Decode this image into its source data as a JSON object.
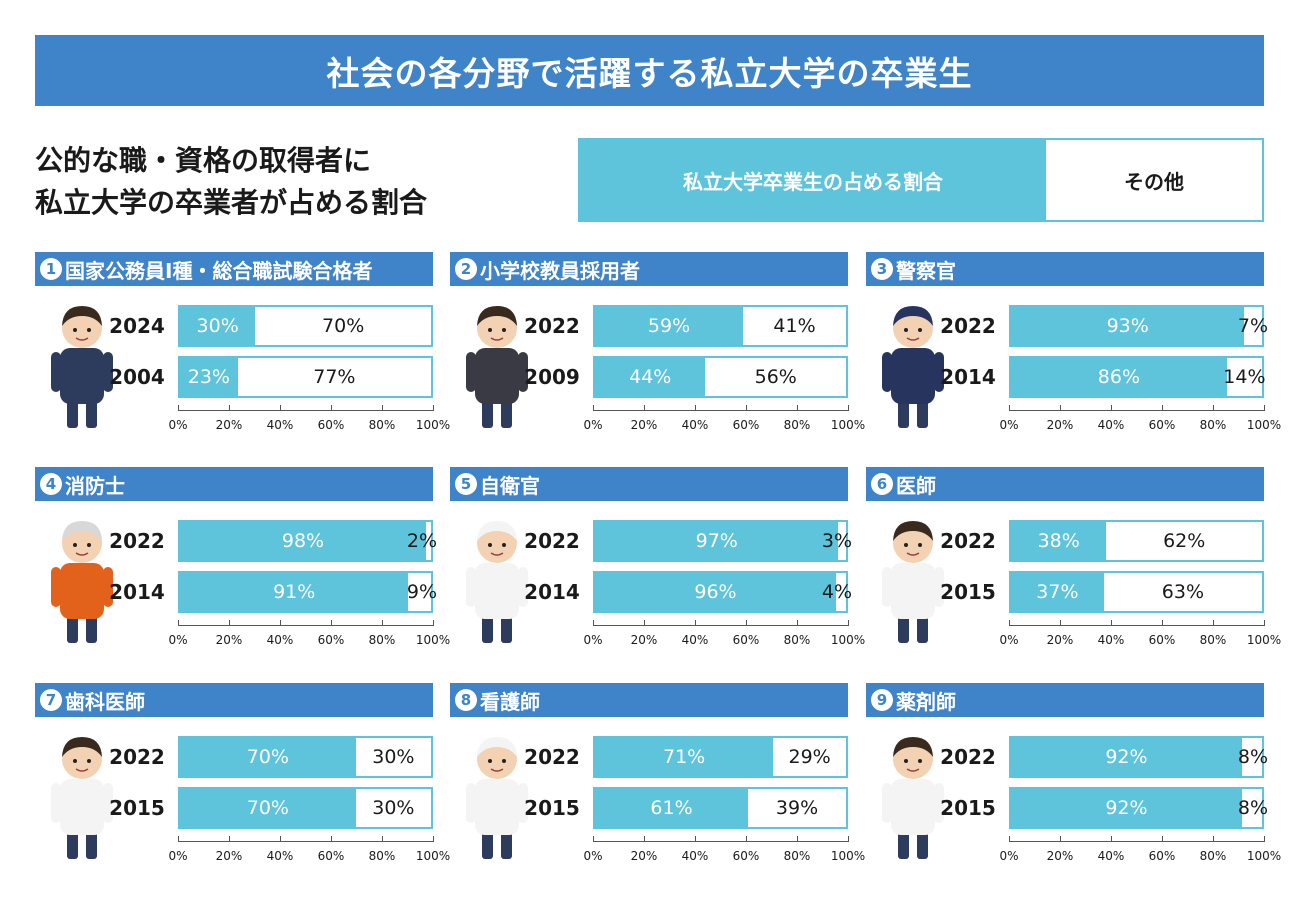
{
  "title": "社会の各分野で活躍する私立大学の卒業生",
  "subtitle_line1": "公的な職・資格の取得者に",
  "subtitle_line2": "私立大学の卒業者が占める割合",
  "legend": {
    "private": "私立大学卒業生の占める割合",
    "other": "その他"
  },
  "colors": {
    "header": "#3f84c8",
    "private": "#5ec4dc",
    "other": "#ffffff"
  },
  "axis_ticks": [
    "0%",
    "20%",
    "40%",
    "60%",
    "80%",
    "100%"
  ],
  "chart_data": [
    {
      "type": "bar",
      "number": "1",
      "title": "国家公務員I種・総合職試験合格者",
      "figure_icon": "civil-servant-icon",
      "categories": [
        "2024",
        "2004"
      ],
      "xlim": [
        0,
        100
      ],
      "series": [
        {
          "name": "私立大学卒業生の占める割合",
          "values": [
            30,
            23
          ]
        },
        {
          "name": "その他",
          "values": [
            70,
            77
          ]
        }
      ]
    },
    {
      "type": "bar",
      "number": "2",
      "title": "小学校教員採用者",
      "figure_icon": "teacher-icon",
      "categories": [
        "2022",
        "2009"
      ],
      "xlim": [
        0,
        100
      ],
      "series": [
        {
          "name": "私立大学卒業生の占める割合",
          "values": [
            59,
            44
          ]
        },
        {
          "name": "その他",
          "values": [
            41,
            56
          ]
        }
      ]
    },
    {
      "type": "bar",
      "number": "3",
      "title": "警察官",
      "figure_icon": "police-officer-icon",
      "categories": [
        "2022",
        "2014"
      ],
      "xlim": [
        0,
        100
      ],
      "series": [
        {
          "name": "私立大学卒業生の占める割合",
          "values": [
            93,
            86
          ]
        },
        {
          "name": "その他",
          "values": [
            7,
            14
          ]
        }
      ]
    },
    {
      "type": "bar",
      "number": "4",
      "title": "消防士",
      "figure_icon": "firefighter-icon",
      "categories": [
        "2022",
        "2014"
      ],
      "xlim": [
        0,
        100
      ],
      "series": [
        {
          "name": "私立大学卒業生の占める割合",
          "values": [
            98,
            91
          ]
        },
        {
          "name": "その他",
          "values": [
            2,
            9
          ]
        }
      ]
    },
    {
      "type": "bar",
      "number": "5",
      "title": "自衛官",
      "figure_icon": "self-defense-officer-icon",
      "categories": [
        "2022",
        "2014"
      ],
      "xlim": [
        0,
        100
      ],
      "series": [
        {
          "name": "私立大学卒業生の占める割合",
          "values": [
            97,
            96
          ]
        },
        {
          "name": "その他",
          "values": [
            3,
            4
          ]
        }
      ]
    },
    {
      "type": "bar",
      "number": "6",
      "title": "医師",
      "figure_icon": "doctor-icon",
      "categories": [
        "2022",
        "2015"
      ],
      "xlim": [
        0,
        100
      ],
      "series": [
        {
          "name": "私立大学卒業生の占める割合",
          "values": [
            38,
            37
          ]
        },
        {
          "name": "その他",
          "values": [
            62,
            63
          ]
        }
      ]
    },
    {
      "type": "bar",
      "number": "7",
      "title": "歯科医師",
      "figure_icon": "dentist-icon",
      "categories": [
        "2022",
        "2015"
      ],
      "xlim": [
        0,
        100
      ],
      "series": [
        {
          "name": "私立大学卒業生の占める割合",
          "values": [
            70,
            70
          ]
        },
        {
          "name": "その他",
          "values": [
            30,
            30
          ]
        }
      ]
    },
    {
      "type": "bar",
      "number": "8",
      "title": "看護師",
      "figure_icon": "nurse-icon",
      "categories": [
        "2022",
        "2015"
      ],
      "xlim": [
        0,
        100
      ],
      "series": [
        {
          "name": "私立大学卒業生の占める割合",
          "values": [
            71,
            61
          ]
        },
        {
          "name": "その他",
          "values": [
            29,
            39
          ]
        }
      ]
    },
    {
      "type": "bar",
      "number": "9",
      "title": "薬剤師",
      "figure_icon": "pharmacist-icon",
      "categories": [
        "2022",
        "2015"
      ],
      "xlim": [
        0,
        100
      ],
      "series": [
        {
          "name": "私立大学卒業生の占める割合",
          "values": [
            92,
            92
          ]
        },
        {
          "name": "その他",
          "values": [
            8,
            8
          ]
        }
      ]
    }
  ]
}
